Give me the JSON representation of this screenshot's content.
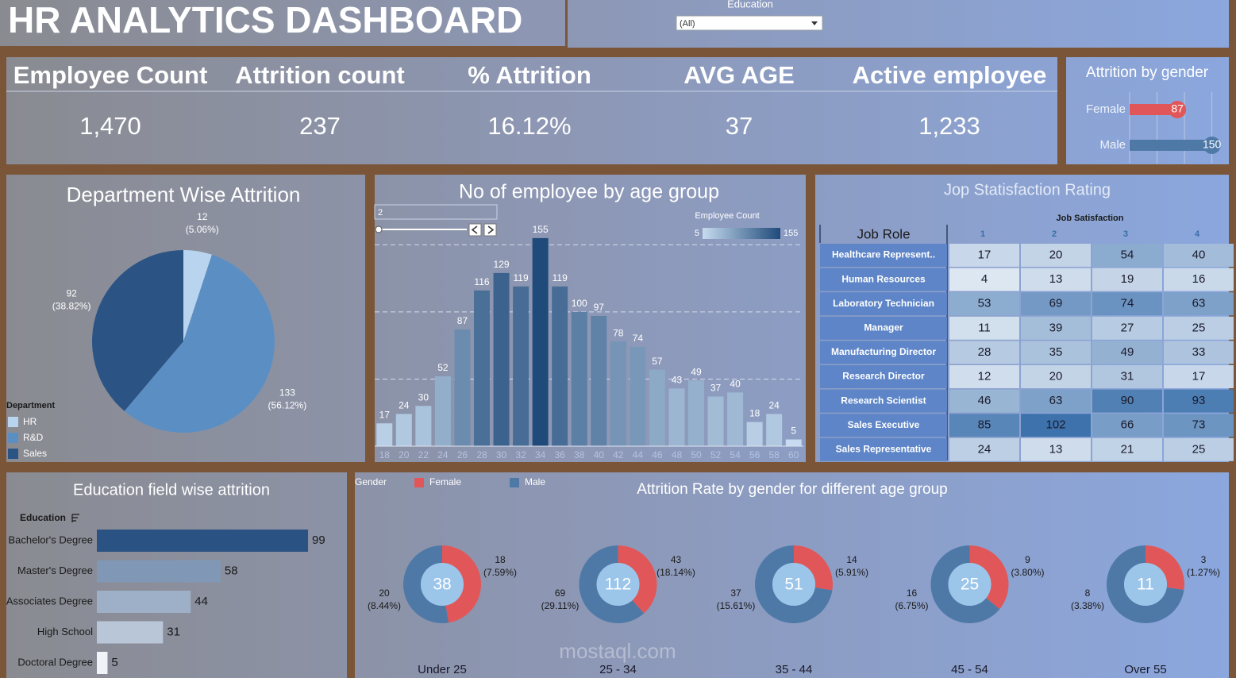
{
  "header": {
    "title": "HR ANALYTICS DASHBOARD"
  },
  "filter": {
    "label": "Education",
    "value": "(All)"
  },
  "kpis": [
    {
      "label": "Employee Count",
      "value": "1,470"
    },
    {
      "label": "Attrition count",
      "value": "237"
    },
    {
      "label": "% Attrition",
      "value": "16.12%"
    },
    {
      "label": "AVG AGE",
      "value": "37"
    },
    {
      "label": "Active employee",
      "value": "1,233"
    }
  ],
  "watermark": "mostaql.com",
  "chart_data": [
    {
      "type": "hbar",
      "title": "Attrition by gender",
      "categories": [
        "Female",
        "Male"
      ],
      "values": [
        87,
        150
      ],
      "colors": [
        "#e15759",
        "#4e79a7"
      ],
      "xlim": [
        0,
        165
      ],
      "xticks": [
        0,
        50,
        100,
        150
      ],
      "grid": true
    },
    {
      "type": "pie",
      "title": "Department Wise Attrition",
      "legend_title": "Department",
      "categories": [
        "HR",
        "R&D",
        "Sales"
      ],
      "values": [
        12,
        133,
        92
      ],
      "percent_labels": [
        "(5.06%)",
        "(56.12%)",
        "(38.82%)"
      ],
      "colors": [
        "#b9d4ee",
        "#5b8fc4",
        "#2b5485"
      ]
    },
    {
      "type": "bar",
      "title": "No of employee by age group",
      "slider_value": "2",
      "categories": [
        "18",
        "20",
        "22",
        "24",
        "26",
        "28",
        "30",
        "32",
        "34",
        "36",
        "38",
        "40",
        "42",
        "44",
        "46",
        "48",
        "50",
        "52",
        "54",
        "56",
        "58",
        "60"
      ],
      "values": [
        17,
        24,
        30,
        52,
        87,
        116,
        129,
        119,
        155,
        119,
        100,
        97,
        78,
        74,
        57,
        43,
        49,
        37,
        40,
        18,
        24,
        5
      ],
      "color_scale": {
        "title": "Employee Count",
        "min": 5,
        "max": 155,
        "colors": [
          "#c6dbef",
          "#1f4a7a"
        ]
      },
      "ylim": [
        0,
        165
      ],
      "yticks": [
        50,
        100,
        150
      ],
      "grid": true
    },
    {
      "type": "heatmap",
      "title": "Jop Statisfaction Rating",
      "row_title": "Job Role",
      "column_title": "Job Satisfaction",
      "columns": [
        1,
        2,
        3,
        4
      ],
      "rows": [
        "Healthcare Represent..",
        "Human Resources",
        "Laboratory Technician",
        "Manager",
        "Manufacturing Director",
        "Research Director",
        "Research Scientist",
        "Sales Executive",
        "Sales Representative"
      ],
      "values": [
        [
          17,
          20,
          54,
          40
        ],
        [
          4,
          13,
          19,
          16
        ],
        [
          53,
          69,
          74,
          63
        ],
        [
          11,
          39,
          27,
          25
        ],
        [
          28,
          35,
          49,
          33
        ],
        [
          12,
          20,
          31,
          17
        ],
        [
          46,
          63,
          90,
          93
        ],
        [
          85,
          102,
          66,
          73
        ],
        [
          24,
          13,
          21,
          25
        ]
      ],
      "color_scale": {
        "colors": [
          "#dde7f2",
          "#3d72ad"
        ]
      }
    },
    {
      "type": "hbar",
      "title": "Education field wise attrition",
      "axis_title": "Education",
      "categories": [
        "Bachelor's Degree",
        "Master's Degree",
        "Associates Degree",
        "High School",
        "Doctoral Degree"
      ],
      "values": [
        99,
        58,
        44,
        31,
        5
      ],
      "color_scale": {
        "colors": [
          "#f0f3f8",
          "#2a5282"
        ]
      },
      "xlim": [
        0,
        110
      ]
    },
    {
      "type": "donuts",
      "title": "Attrition Rate by gender for different age group",
      "legend_title": "Gender",
      "groups": [
        "Under 25",
        "25 - 34",
        "35 - 44",
        "45 - 54",
        "Over 55"
      ],
      "totals": [
        38,
        112,
        51,
        25,
        11
      ],
      "series": [
        {
          "name": "Female",
          "color": "#e15759",
          "values": [
            18,
            43,
            14,
            9,
            3
          ],
          "percent_labels": [
            "(7.59%)",
            "(18.14%)",
            "(5.91%)",
            "(3.80%)",
            "(1.27%)"
          ]
        },
        {
          "name": "Male",
          "color": "#4e79a7",
          "values": [
            20,
            69,
            37,
            16,
            8
          ],
          "percent_labels": [
            "(8.44%)",
            "(29.11%)",
            "(15.61%)",
            "(6.75%)",
            "(3.38%)"
          ]
        }
      ]
    }
  ]
}
